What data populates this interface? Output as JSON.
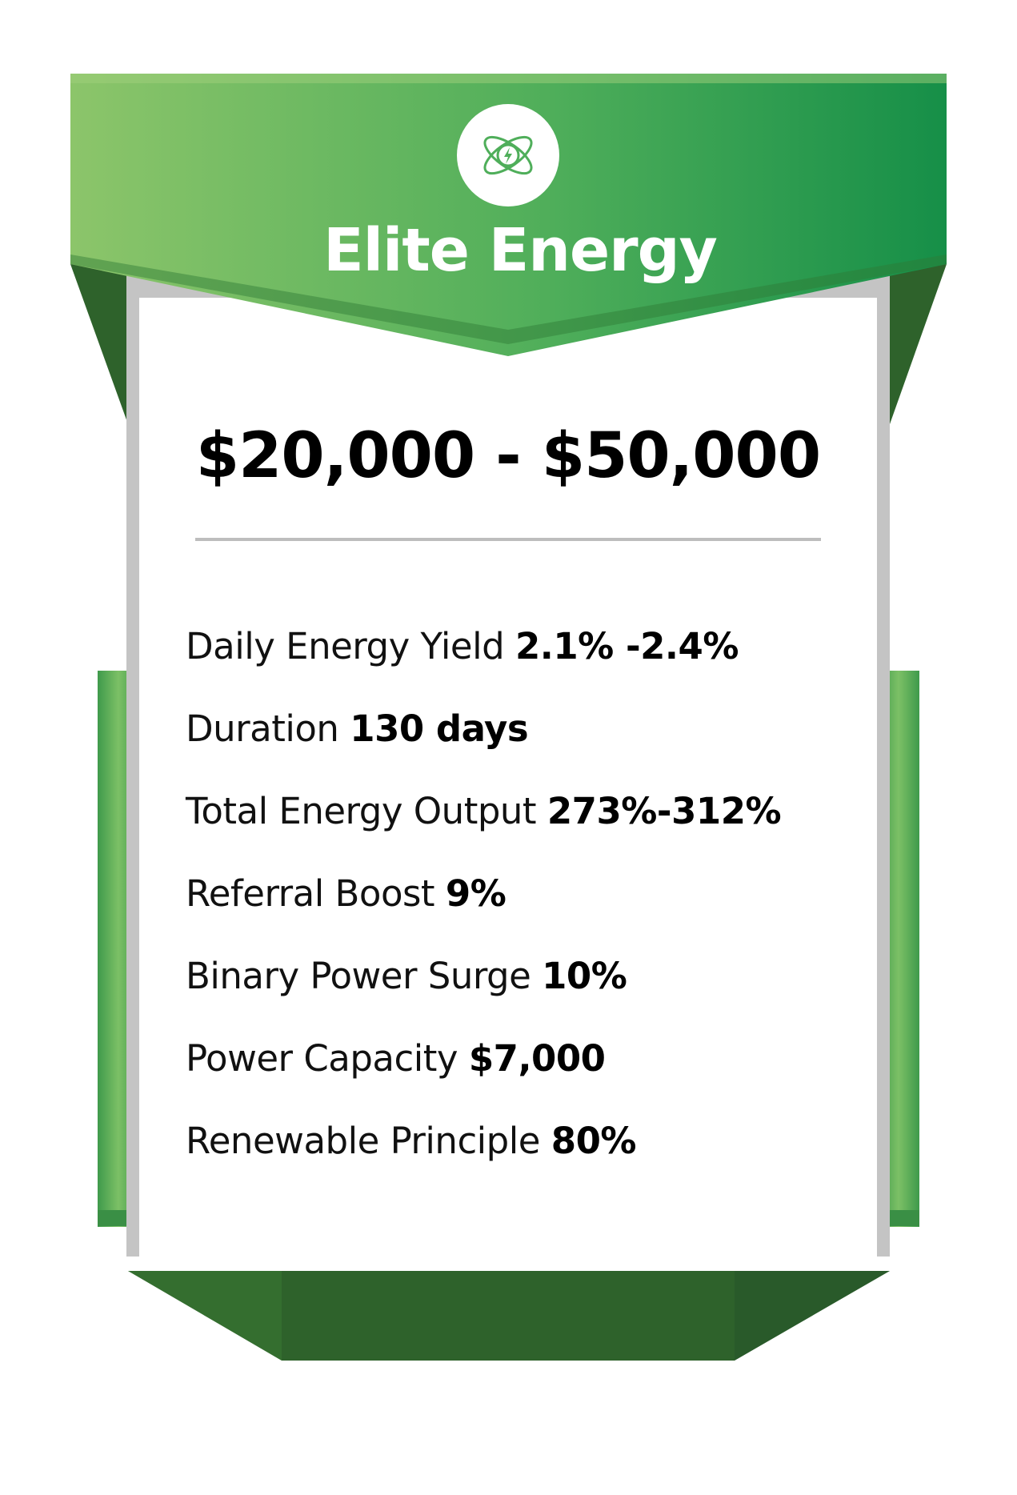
{
  "plan": {
    "title": "Elite Energy",
    "logo_icon": "atom-lightning-icon",
    "price_range": "$20,000 - $50,000",
    "features": [
      {
        "label": "Daily Energy Yield",
        "value": "2.1% -2.4%"
      },
      {
        "label": "Duration",
        "value": "130 days"
      },
      {
        "label": "Total Energy Output",
        "value": "273%-312%"
      },
      {
        "label": "Referral Boost",
        "value": "9%"
      },
      {
        "label": "Binary Power Surge",
        "value": "10%"
      },
      {
        "label": "Power Capacity",
        "value": "$7,000"
      },
      {
        "label": "Renewable Principle",
        "value": "80%"
      }
    ]
  },
  "colors": {
    "green_light": "#8cc56a",
    "green_mid": "#4fae5a",
    "green_dark": "#168f48",
    "green_deep": "#2e622b",
    "card_border": "#c4c4c4",
    "text": "#000000"
  }
}
